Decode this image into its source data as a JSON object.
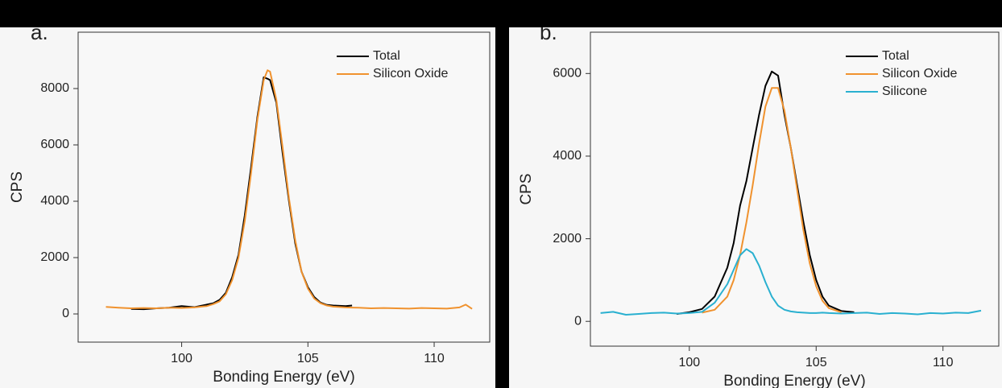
{
  "chart_data": [
    {
      "type": "line",
      "panel_label": "a.",
      "x_label": "Bonding Energy (eV)",
      "y_label": "CPS",
      "xlim": [
        95.9,
        112.2
      ],
      "xticks": [
        100,
        105,
        110
      ],
      "ylim": [
        -1000,
        10000
      ],
      "yticks": [
        0,
        2000,
        4000,
        6000,
        8000
      ],
      "legend": "upper right",
      "x": [
        97,
        97.5,
        98,
        98.5,
        99,
        99.5,
        100,
        100.5,
        101,
        101.25,
        101.5,
        101.75,
        102,
        102.25,
        102.5,
        102.75,
        103,
        103.25,
        103.4,
        103.5,
        103.75,
        104,
        104.25,
        104.5,
        104.75,
        105,
        105.25,
        105.5,
        105.75,
        106,
        106.5,
        106.75,
        107,
        107.5,
        108,
        108.5,
        109,
        109.5,
        110,
        110.5,
        111,
        111.25,
        111.5
      ],
      "series": [
        {
          "name": "Total",
          "color": "#000000",
          "values": [
            null,
            null,
            180,
            170,
            200,
            220,
            280,
            240,
            330,
            380,
            500,
            750,
            1300,
            2100,
            3500,
            5200,
            7000,
            8400,
            8350,
            8300,
            7500,
            5700,
            4000,
            2500,
            1500,
            950,
            600,
            400,
            320,
            300,
            280,
            300,
            null,
            null,
            null,
            null,
            null,
            null,
            null,
            null,
            null,
            null,
            null
          ]
        },
        {
          "name": "Silicon Oxide",
          "color": "#f0922e",
          "values": [
            250,
            220,
            200,
            210,
            200,
            220,
            210,
            230,
            280,
            350,
            450,
            700,
            1200,
            2000,
            3300,
            5000,
            6900,
            8300,
            8650,
            8600,
            7600,
            5900,
            4100,
            2600,
            1500,
            900,
            550,
            380,
            300,
            260,
            230,
            225,
            220,
            200,
            210,
            200,
            190,
            210,
            200,
            190,
            230,
            330,
            180
          ]
        }
      ]
    },
    {
      "type": "line",
      "panel_label": "b.",
      "x_label": "Bonding Energy (eV)",
      "y_label": "CPS",
      "xlim": [
        96.1,
        112.2
      ],
      "xticks": [
        100,
        105,
        110
      ],
      "ylim": [
        -600,
        7000
      ],
      "yticks": [
        0,
        2000,
        4000,
        6000
      ],
      "legend": "upper right",
      "x": [
        96.5,
        97,
        97.5,
        98,
        98.5,
        99,
        99.5,
        100,
        100.5,
        101,
        101.5,
        101.75,
        102,
        102.25,
        102.5,
        102.75,
        103,
        103.25,
        103.5,
        103.75,
        104,
        104.25,
        104.5,
        104.75,
        105,
        105.25,
        105.5,
        106,
        106.5,
        107,
        107.5,
        108,
        108.5,
        109,
        109.5,
        110,
        110.5,
        111,
        111.5
      ],
      "series": [
        {
          "name": "Total",
          "color": "#000000",
          "values": [
            null,
            null,
            null,
            null,
            null,
            null,
            180,
            220,
            300,
            600,
            1300,
            1900,
            2800,
            3400,
            4200,
            5000,
            5700,
            6050,
            5950,
            5000,
            4200,
            3300,
            2400,
            1600,
            1000,
            600,
            380,
            250,
            220,
            null,
            null,
            null,
            null,
            null,
            null,
            null,
            null,
            null,
            null
          ]
        },
        {
          "name": "Silicon Oxide",
          "color": "#f0922e",
          "values": [
            null,
            null,
            null,
            null,
            null,
            null,
            null,
            null,
            210,
            280,
            600,
            1000,
            1600,
            2400,
            3300,
            4300,
            5200,
            5650,
            5650,
            5100,
            4200,
            3200,
            2200,
            1400,
            850,
            500,
            320,
            220,
            null,
            null,
            null,
            null,
            null,
            null,
            null,
            null,
            null,
            null,
            null
          ]
        },
        {
          "name": "Silicone",
          "color": "#2ab0d0",
          "values": [
            200,
            230,
            160,
            180,
            200,
            210,
            190,
            200,
            230,
            450,
            900,
            1250,
            1600,
            1750,
            1650,
            1350,
            950,
            600,
            380,
            280,
            240,
            220,
            210,
            200,
            200,
            210,
            200,
            190,
            200,
            210,
            180,
            200,
            190,
            170,
            200,
            190,
            210,
            200,
            260
          ]
        }
      ]
    }
  ]
}
